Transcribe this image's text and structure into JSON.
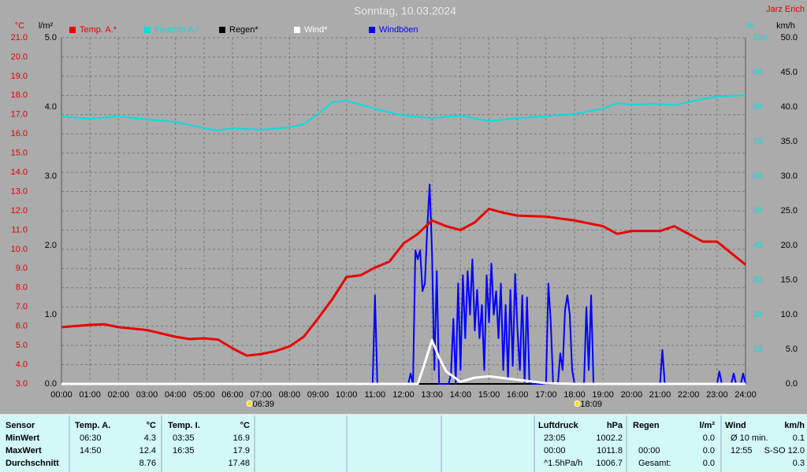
{
  "chart_data": {
    "type": "line",
    "title": "Sonntag, 10.03.2024",
    "subtitle": "Jarz Erich",
    "y_label": "°C",
    "y2_label": "l/m²",
    "y3_label": "%",
    "y4_label": "km/h",
    "xlim": [
      0,
      1440
    ],
    "xticks": [
      {
        "value": 0,
        "label": "00:00"
      },
      {
        "value": 60,
        "label": "01:00"
      },
      {
        "value": 120,
        "label": "02:00"
      },
      {
        "value": 180,
        "label": "03:00"
      },
      {
        "value": 240,
        "label": "04:00"
      },
      {
        "value": 300,
        "label": "05:00"
      },
      {
        "value": 360,
        "label": "06:00"
      },
      {
        "value": 420,
        "label": "07:00"
      },
      {
        "value": 480,
        "label": "08:00"
      },
      {
        "value": 540,
        "label": "09:00"
      },
      {
        "value": 600,
        "label": "10:00"
      },
      {
        "value": 660,
        "label": "11:00"
      },
      {
        "value": 720,
        "label": "12:00"
      },
      {
        "value": 780,
        "label": "13:00"
      },
      {
        "value": 840,
        "label": "14:00"
      },
      {
        "value": 900,
        "label": "15:00"
      },
      {
        "value": 960,
        "label": "16:00"
      },
      {
        "value": 1020,
        "label": "17:00"
      },
      {
        "value": 1080,
        "label": "18:00"
      },
      {
        "value": 1140,
        "label": "19:00"
      },
      {
        "value": 1200,
        "label": "20:00"
      },
      {
        "value": 1260,
        "label": "21:00"
      },
      {
        "value": 1320,
        "label": "22:00"
      },
      {
        "value": 1380,
        "label": "23:00"
      },
      {
        "value": 1440,
        "label": "24:00"
      }
    ],
    "ylim": [
      3,
      21
    ],
    "yticks": [
      {
        "value": 3,
        "label": "3.0"
      },
      {
        "value": 4,
        "label": "4.0"
      },
      {
        "value": 5,
        "label": "5.0"
      },
      {
        "value": 6,
        "label": "6.0"
      },
      {
        "value": 7,
        "label": "7.0"
      },
      {
        "value": 8,
        "label": "8.0"
      },
      {
        "value": 9,
        "label": "9.0"
      },
      {
        "value": 10,
        "label": "10.0"
      },
      {
        "value": 11,
        "label": "11.0"
      },
      {
        "value": 12,
        "label": "12.0"
      },
      {
        "value": 13,
        "label": "13.0"
      },
      {
        "value": 14,
        "label": "14.0"
      },
      {
        "value": 15,
        "label": "15.0"
      },
      {
        "value": 16,
        "label": "16.0"
      },
      {
        "value": 17,
        "label": "17.0"
      },
      {
        "value": 18,
        "label": "18.0"
      },
      {
        "value": 19,
        "label": "19.0"
      },
      {
        "value": 20,
        "label": "20.0"
      },
      {
        "value": 21,
        "label": "21.0"
      }
    ],
    "y2lim": [
      0,
      5
    ],
    "y2ticks": [
      {
        "value": 0,
        "label": "0.0"
      },
      {
        "value": 1,
        "label": "1.0"
      },
      {
        "value": 2,
        "label": "2.0"
      },
      {
        "value": 3,
        "label": "3.0"
      },
      {
        "value": 4,
        "label": "4.0"
      },
      {
        "value": 5,
        "label": "5.0"
      }
    ],
    "y3lim": [
      0,
      100
    ],
    "y3ticks": [
      10,
      20,
      30,
      40,
      50,
      60,
      70,
      80,
      90,
      100
    ],
    "y4lim": [
      0,
      50
    ],
    "y4ticks": [
      {
        "value": 0,
        "label": "0.0"
      },
      {
        "value": 5,
        "label": "5.0"
      },
      {
        "value": 10,
        "label": "10.0"
      },
      {
        "value": 15,
        "label": "15.0"
      },
      {
        "value": 20,
        "label": "20.0"
      },
      {
        "value": 25,
        "label": "25.0"
      },
      {
        "value": 30,
        "label": "30.0"
      },
      {
        "value": 35,
        "label": "35.0"
      },
      {
        "value": 40,
        "label": "40.0"
      },
      {
        "value": 45,
        "label": "45.0"
      },
      {
        "value": 50,
        "label": "50.0"
      }
    ],
    "grid": true,
    "series": [
      {
        "name": "Temp. A.*",
        "color": "#e80000",
        "axis": "y",
        "x": [
          0,
          60,
          90,
          120,
          180,
          240,
          270,
          300,
          330,
          360,
          390,
          420,
          450,
          480,
          510,
          540,
          570,
          600,
          630,
          660,
          690,
          720,
          750,
          780,
          810,
          840,
          870,
          900,
          930,
          960,
          1020,
          1080,
          1140,
          1170,
          1200,
          1260,
          1290,
          1320,
          1350,
          1380,
          1410,
          1440
        ],
        "values": [
          5.95,
          6.07,
          6.1,
          5.95,
          5.8,
          5.45,
          5.33,
          5.37,
          5.3,
          4.85,
          4.47,
          4.55,
          4.7,
          4.95,
          5.45,
          6.4,
          7.4,
          8.56,
          8.65,
          9.05,
          9.35,
          10.3,
          10.8,
          11.5,
          11.2,
          11.0,
          11.4,
          12.1,
          11.9,
          11.75,
          11.7,
          11.5,
          11.2,
          10.8,
          10.95,
          10.95,
          11.2,
          10.8,
          10.4,
          10.4,
          9.8,
          9.2
        ]
      },
      {
        "name": "Feuchte A.*",
        "color": "#00e0e0",
        "axis": "y3",
        "x": [
          0,
          60,
          120,
          180,
          240,
          300,
          330,
          360,
          420,
          480,
          510,
          540,
          570,
          600,
          660,
          720,
          780,
          840,
          900,
          960,
          1020,
          1080,
          1140,
          1170,
          1200,
          1260,
          1290,
          1350,
          1380,
          1440
        ],
        "values": [
          77.3,
          76.6,
          77.3,
          76.4,
          75.7,
          73.9,
          73.2,
          73.9,
          73.4,
          74.1,
          75,
          78,
          81.4,
          81.8,
          79.5,
          77.5,
          76.8,
          77.5,
          75.9,
          76.8,
          77.3,
          78,
          79.5,
          81.1,
          80.7,
          80.9,
          80.5,
          82.3,
          83,
          83.4
        ]
      },
      {
        "name": "Regen*",
        "color": "#000000",
        "axis": "y2",
        "x": [
          0,
          1440
        ],
        "values": [
          0,
          0
        ]
      },
      {
        "name": "Wind*",
        "color": "#ffffff",
        "axis": "y4",
        "x": [
          0,
          750,
          760,
          780,
          795,
          810,
          840,
          870,
          900,
          960,
          1020,
          1080,
          1440
        ],
        "values": [
          0,
          0,
          2,
          6.3,
          3.8,
          1.8,
          0.3,
          0.9,
          1.1,
          0.6,
          0.1,
          0,
          0
        ]
      },
      {
        "name": "Windböen",
        "color": "#0000ff",
        "axis": "y4",
        "x": [
          0,
          655,
          660,
          665,
          730,
          735,
          740,
          745,
          750,
          755,
          760,
          765,
          770,
          775,
          780,
          785,
          790,
          795,
          815,
          820,
          825,
          830,
          835,
          840,
          845,
          850,
          855,
          860,
          865,
          870,
          875,
          880,
          885,
          890,
          895,
          900,
          905,
          910,
          915,
          920,
          925,
          930,
          935,
          940,
          945,
          950,
          955,
          960,
          965,
          970,
          975,
          980,
          985,
          990,
          1020,
          1025,
          1030,
          1035,
          1045,
          1050,
          1055,
          1060,
          1065,
          1070,
          1075,
          1080,
          1100,
          1105,
          1110,
          1115,
          1120,
          1260,
          1265,
          1270,
          1380,
          1385,
          1390,
          1410,
          1415,
          1420,
          1430,
          1435,
          1440
        ],
        "values": [
          0,
          0,
          12.8,
          0,
          0,
          1.5,
          0,
          19.3,
          18.0,
          19.3,
          13.4,
          14.5,
          22.5,
          28.8,
          19.1,
          2.0,
          16.3,
          0,
          0,
          1.5,
          9.4,
          0,
          14.5,
          2.0,
          15.7,
          6.6,
          16.3,
          10.0,
          18.0,
          7.7,
          13.6,
          6.6,
          11.4,
          2.0,
          15.7,
          8.9,
          17.4,
          10.0,
          13.4,
          6.6,
          14.5,
          2.0,
          11.4,
          0.9,
          13.6,
          2.6,
          15.9,
          7.7,
          2.0,
          12.8,
          0,
          12.5,
          0.3,
          0,
          0,
          14.5,
          8.9,
          0,
          0,
          4.4,
          2.0,
          10.6,
          12.8,
          10.0,
          2.0,
          0,
          0,
          11.1,
          2.0,
          12.8,
          0,
          0,
          4.9,
          0,
          0,
          1.8,
          0,
          0,
          1.5,
          0,
          0,
          1.5,
          0
        ]
      }
    ],
    "annotations": [
      {
        "text": "06:39",
        "x": 399
      },
      {
        "text": "18:09",
        "x": 1089
      }
    ]
  },
  "table": {
    "sections": [
      {
        "header": [
          "Sensor",
          "Temp. A.",
          "°C",
          "Temp. I.",
          "°C"
        ],
        "rows": [
          [
            "MinWert",
            "06:30",
            "4.3",
            "03:35",
            "16.9"
          ],
          [
            "MaxWert",
            "14:50",
            "12.4",
            "16:35",
            "17.9"
          ],
          [
            "Durchschnitt",
            "",
            "8.76",
            "",
            "17.48"
          ]
        ]
      },
      {
        "header": [
          "Luftdruck",
          "hPa"
        ],
        "rows": [
          [
            "23:05",
            "1002.2"
          ],
          [
            "00:00",
            "1011.8"
          ],
          [
            "^1.5hPa/h",
            "1006.7"
          ]
        ]
      },
      {
        "header": [
          "Regen",
          "l/m²"
        ],
        "rows": [
          [
            "",
            "0.0"
          ],
          [
            "00:00",
            "0.0"
          ],
          [
            "Gesamt:",
            "0.0"
          ]
        ]
      },
      {
        "header": [
          "Wind",
          "km/h"
        ],
        "rows": [
          [
            "Ø 10 min.",
            "0.1"
          ],
          [
            "12:55",
            "S-SO 12.0"
          ],
          [
            "",
            "0.3"
          ]
        ]
      }
    ]
  }
}
